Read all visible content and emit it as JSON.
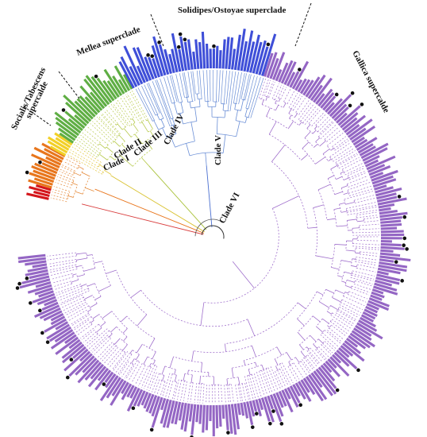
{
  "figure": {
    "clades": [
      {
        "id": "I",
        "label": "Clade I",
        "color": "#d61f1f"
      },
      {
        "id": "II",
        "label": "Clade II",
        "color": "#e8741a"
      },
      {
        "id": "III",
        "label": "Clade III",
        "color": "#e6c21f"
      },
      {
        "id": "IV",
        "label": "Clade IV",
        "color": "#9bc43a"
      },
      {
        "id": "V",
        "label": "Clade V",
        "color": "#4a62d8"
      },
      {
        "id": "VI",
        "label": "Clade VI",
        "color": "#9a6cc4"
      }
    ],
    "superclades": [
      {
        "id": "socialis",
        "label_line1": "Socialis/Tabescens",
        "label_line2": "supercalde"
      },
      {
        "id": "mellea",
        "label": "Mellea superclade"
      },
      {
        "id": "solidipes",
        "label": "Solidipes/Ostoyae superclade"
      },
      {
        "id": "gallica",
        "label": "Gallica supercalde"
      }
    ],
    "bar_colors": {
      "red": "#d4161b",
      "orange": "#e8761c",
      "yellow": "#f2d027",
      "green": "#5fae44",
      "blue": "#3f4fd8",
      "purple": "#9466c4",
      "dot": "#111111"
    }
  }
}
